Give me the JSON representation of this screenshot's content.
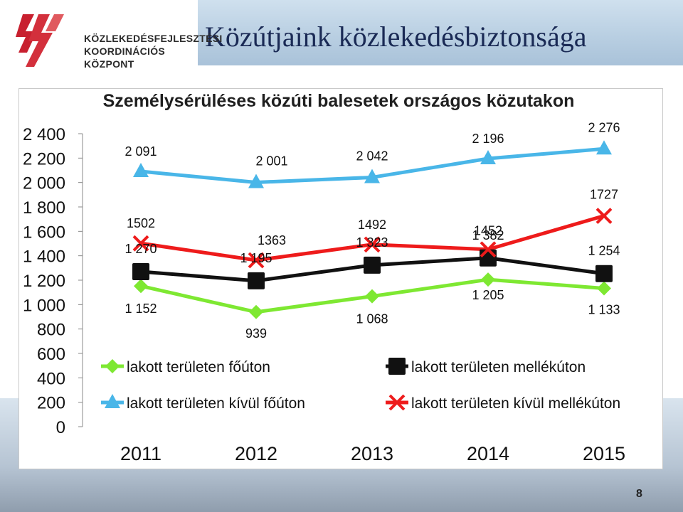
{
  "header": {
    "title": "Közútjaink közlekedésbiztonsága",
    "logo_lines": [
      "KÖZLEKEDÉSFEJLESZTÉSI",
      "KOORDINÁCIÓS",
      "KÖZPONT"
    ]
  },
  "page_number": "8",
  "colors": {
    "green": "#7ee832",
    "black": "#111111",
    "blue": "#49b6e8",
    "red": "#ee1b1b",
    "header_text": "#1a2a55"
  },
  "chart_data": {
    "type": "line",
    "title": "Személysérüléses közúti balesetek országos közutakon",
    "categories": [
      "2011",
      "2012",
      "2013",
      "2014",
      "2015"
    ],
    "ylim": [
      0,
      2400
    ],
    "yticks": [
      0,
      200,
      400,
      600,
      800,
      1000,
      1200,
      1400,
      1600,
      1800,
      2000,
      2200,
      2400
    ],
    "ytick_labels": [
      "0",
      "200",
      "400",
      "600",
      "800",
      "1 000",
      "1 200",
      "1 400",
      "1 600",
      "1 800",
      "2 000",
      "2 200",
      "2 400"
    ],
    "grid": false,
    "legend_position": "inside-bottom",
    "series": [
      {
        "key": "green",
        "name": "lakott területen főúton",
        "values": [
          1152,
          939,
          1068,
          1205,
          1133
        ],
        "labels": [
          "1 152",
          "939",
          "1 068",
          "1 205",
          "1 133"
        ],
        "marker": "diamond",
        "color": "#7ee832"
      },
      {
        "key": "black",
        "name": "lakott területen mellékúton",
        "values": [
          1270,
          1195,
          1323,
          1382,
          1254
        ],
        "labels": [
          "1 270",
          "1 195",
          "1 323",
          "1 382",
          "1 254"
        ],
        "marker": "square",
        "color": "#111111"
      },
      {
        "key": "blue",
        "name": "lakott területen kívül főúton",
        "values": [
          2091,
          2001,
          2042,
          2196,
          2276
        ],
        "labels": [
          "2 091",
          "2 001",
          "2 042",
          "2 196",
          "2 276"
        ],
        "marker": "triangle",
        "color": "#49b6e8"
      },
      {
        "key": "red",
        "name": "lakott területen kívül mellékúton",
        "values": [
          1502,
          1363,
          1492,
          1452,
          1727
        ],
        "labels": [
          "1502",
          "1363",
          "1492",
          "1452",
          "1727"
        ],
        "marker": "x",
        "color": "#ee1b1b"
      }
    ]
  }
}
